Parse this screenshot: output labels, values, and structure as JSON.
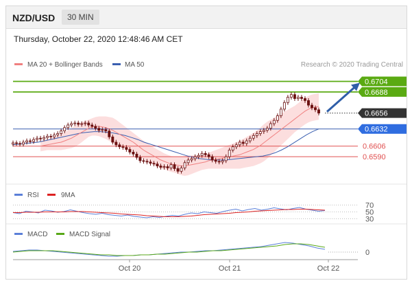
{
  "header": {
    "pair": "NZD/USD",
    "timeframe": "30 MIN"
  },
  "datetime": "Thursday, October 22, 2020 12:48:46 AM CET",
  "credit": "Research © 2020 Trading Central",
  "colors": {
    "bullish": "#ffffff",
    "bearish": "#6b1111",
    "candle_outline": "#6b1111",
    "ma20": "#f08080",
    "bollinger_fill": "#fbd0d0",
    "ma50": "#3a5fb0",
    "resistance": "#5aaa12",
    "support": "#e05050",
    "current": "#333333",
    "ma50_tag": "#2f6de0",
    "rsi": "#5b7fd8",
    "rsi_ma": "#dd2222",
    "macd": "#5b7fd8",
    "macd_signal": "#58a818",
    "arrow": "#2f5ea8"
  },
  "chart_data": [
    {
      "type": "candlestick",
      "title": "",
      "legend": [
        "MA 20 + Bollinger Bands",
        "MA 50"
      ],
      "legend_placement": "top-left",
      "x_ticks": [
        "Oct 20",
        "Oct 21",
        "Oct 22"
      ],
      "grid": false,
      "ylim": [
        0.656,
        0.6718
      ],
      "price_levels": [
        {
          "value": 0.6704,
          "label": "0.6704",
          "kind": "resistance"
        },
        {
          "value": 0.6688,
          "label": "0.6688",
          "kind": "resistance"
        },
        {
          "value": 0.6656,
          "label": "0.6656",
          "kind": "current"
        },
        {
          "value": 0.6632,
          "label": "0.6632",
          "kind": "ma50"
        },
        {
          "value": 0.6606,
          "label": "0.6606",
          "kind": "support"
        },
        {
          "value": 0.659,
          "label": "0.6590",
          "kind": "support"
        }
      ],
      "close": [
        0.6611,
        0.661,
        0.6609,
        0.6612,
        0.6614,
        0.6613,
        0.6616,
        0.6618,
        0.6617,
        0.6619,
        0.6621,
        0.662,
        0.6623,
        0.6625,
        0.6629,
        0.6634,
        0.6638,
        0.664,
        0.6641,
        0.6639,
        0.664,
        0.6641,
        0.6638,
        0.6636,
        0.6633,
        0.663,
        0.6631,
        0.6629,
        0.662,
        0.6612,
        0.6608,
        0.6605,
        0.6604,
        0.6601,
        0.6597,
        0.6594,
        0.6589,
        0.6584,
        0.6583,
        0.6582,
        0.658,
        0.6579,
        0.6576,
        0.6574,
        0.6575,
        0.6573,
        0.6578,
        0.6572,
        0.6568,
        0.6573,
        0.6581,
        0.6585,
        0.6587,
        0.659,
        0.6592,
        0.6595,
        0.6593,
        0.659,
        0.6585,
        0.6583,
        0.6582,
        0.6584,
        0.659,
        0.66,
        0.6605,
        0.6608,
        0.6612,
        0.661,
        0.6614,
        0.6618,
        0.6622,
        0.6625,
        0.6628,
        0.663,
        0.6633,
        0.664,
        0.6645,
        0.6652,
        0.6662,
        0.6672,
        0.668,
        0.6684,
        0.6678,
        0.668,
        0.6678,
        0.6675,
        0.6668,
        0.6664,
        0.6661,
        0.6656
      ],
      "ma20": [
        0.6606,
        0.6607,
        0.6608,
        0.6609,
        0.661,
        0.6611,
        0.6612,
        0.6614,
        0.6616,
        0.6618,
        0.6621,
        0.6624,
        0.6627,
        0.663,
        0.6633,
        0.6635,
        0.6636,
        0.6636,
        0.6635,
        0.6634,
        0.6632,
        0.663,
        0.6627,
        0.6624,
        0.6621,
        0.6618,
        0.6615,
        0.6612,
        0.6608,
        0.6604,
        0.66,
        0.6597,
        0.6594,
        0.6591,
        0.6588,
        0.6585,
        0.6583,
        0.6581,
        0.6579,
        0.6578,
        0.6577,
        0.6576,
        0.6576,
        0.6577,
        0.6578,
        0.6579,
        0.658,
        0.6581,
        0.6582,
        0.6584,
        0.6585,
        0.6586,
        0.6587,
        0.6588,
        0.6589,
        0.659,
        0.6591,
        0.6592,
        0.6593,
        0.6595,
        0.6597,
        0.6599,
        0.6601,
        0.6604,
        0.6607,
        0.6611,
        0.6615,
        0.6619,
        0.6623,
        0.6627,
        0.6631,
        0.6635,
        0.6639,
        0.6643,
        0.6647,
        0.6651,
        0.6655,
        0.6659,
        0.6662,
        0.6664,
        0.6665,
        0.6666
      ],
      "bb_width": [
        0.0008,
        0.0008,
        0.0008,
        0.0009,
        0.001,
        0.0011,
        0.0012,
        0.0013,
        0.0014,
        0.0015,
        0.0016,
        0.0016,
        0.0015,
        0.0014,
        0.0013,
        0.0013,
        0.0014,
        0.0015,
        0.0016,
        0.0017,
        0.0018,
        0.0019,
        0.0019,
        0.0018,
        0.0017,
        0.0016,
        0.0015,
        0.0014,
        0.0014,
        0.0014,
        0.0014,
        0.0014,
        0.0013,
        0.0013,
        0.0013,
        0.0013,
        0.0012,
        0.0012,
        0.0012,
        0.0012,
        0.0013,
        0.0014,
        0.0015,
        0.0015,
        0.0014,
        0.0013,
        0.0012,
        0.0011,
        0.0011,
        0.0012,
        0.0013,
        0.0014,
        0.0015,
        0.0016,
        0.0017,
        0.0018,
        0.0019,
        0.002,
        0.0021,
        0.0022,
        0.0023,
        0.0024,
        0.0025,
        0.0026,
        0.0027,
        0.0028,
        0.0028,
        0.0027,
        0.0026,
        0.0025,
        0.0024,
        0.0023,
        0.0022,
        0.0021,
        0.002,
        0.002,
        0.002,
        0.002,
        0.002,
        0.002,
        0.002,
        0.002
      ],
      "ma50": [
        0.6608,
        0.6609,
        0.661,
        0.6611,
        0.6612,
        0.6614,
        0.6616,
        0.6618,
        0.662,
        0.6622,
        0.6624,
        0.6626,
        0.6627,
        0.6628,
        0.6628,
        0.6627,
        0.6626,
        0.6624,
        0.6622,
        0.6619,
        0.6616,
        0.6612,
        0.6609,
        0.6606,
        0.6603,
        0.66,
        0.6597,
        0.6594,
        0.6591,
        0.6589,
        0.6587,
        0.6586,
        0.6585,
        0.6585,
        0.6585,
        0.6586,
        0.6587,
        0.6588,
        0.6589,
        0.659,
        0.6591,
        0.6593,
        0.6596,
        0.66,
        0.6605,
        0.6611,
        0.6617,
        0.6623,
        0.6628,
        0.6632
      ]
    },
    {
      "type": "line",
      "title": "",
      "legend": [
        "RSI",
        "9MA"
      ],
      "y_ticks": [
        70,
        50,
        30
      ],
      "ylim": [
        25,
        75
      ],
      "rsi": [
        48,
        45,
        52,
        50,
        47,
        55,
        53,
        49,
        51,
        56,
        52,
        48,
        45,
        43,
        46,
        42,
        40,
        38,
        41,
        37,
        35,
        33,
        36,
        34,
        37,
        40,
        38,
        43,
        47,
        45,
        50,
        48,
        46,
        51,
        55,
        58,
        53,
        57,
        60,
        55,
        58,
        62,
        59,
        56,
        60,
        63,
        58,
        55,
        52,
        54
      ],
      "rsi_ma": [
        48,
        48,
        49,
        49,
        49,
        50,
        50,
        50,
        50,
        51,
        51,
        51,
        50,
        49,
        48,
        47,
        46,
        44,
        43,
        42,
        41,
        39,
        38,
        37,
        36,
        36,
        36,
        37,
        38,
        40,
        42,
        43,
        44,
        45,
        46,
        48,
        49,
        50,
        52,
        53,
        54,
        55,
        56,
        57,
        57,
        58,
        58,
        57,
        56,
        55
      ]
    },
    {
      "type": "line",
      "title": "",
      "legend": [
        "MACD",
        "MACD Signal"
      ],
      "y_ticks": [
        0
      ],
      "ylim": [
        -0.001,
        0.0018
      ],
      "macd": [
        0.0001,
        0.0002,
        0.0003,
        0.0003,
        0.0002,
        0.0001,
        0.0,
        -0.0001,
        -0.0002,
        -0.0003,
        -0.0004,
        -0.0005,
        -0.0006,
        -0.0006,
        -0.0005,
        -0.0005,
        -0.0004,
        -0.0004,
        -0.0003,
        -0.0002,
        -0.0001,
        0.0,
        0.0,
        0.0001,
        0.0002,
        0.0002,
        0.0003,
        0.0004,
        0.0005,
        0.0006,
        0.0007,
        0.0008,
        0.001,
        0.0012,
        0.0014,
        0.0013,
        0.0011,
        0.0009,
        0.0006,
        0.0004
      ],
      "macd_signal": [
        0.0,
        0.0001,
        0.0002,
        0.0002,
        0.0002,
        0.0002,
        0.0001,
        0.0,
        -0.0001,
        -0.0002,
        -0.0003,
        -0.0004,
        -0.0004,
        -0.0005,
        -0.0005,
        -0.0005,
        -0.0004,
        -0.0004,
        -0.0003,
        -0.0003,
        -0.0002,
        -0.0001,
        0.0,
        0.0,
        0.0001,
        0.0002,
        0.0002,
        0.0003,
        0.0004,
        0.0005,
        0.0006,
        0.0007,
        0.0008,
        0.0009,
        0.0011,
        0.0012,
        0.0012,
        0.0011,
        0.0009,
        0.0007
      ]
    }
  ]
}
